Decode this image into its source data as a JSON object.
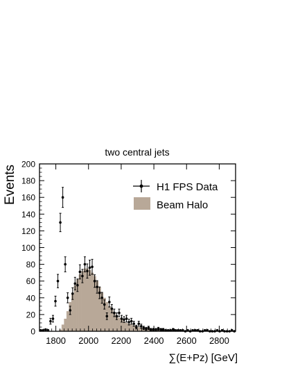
{
  "chart_data": {
    "type": "bar",
    "title": "two central jets",
    "xlabel": "∑(E+Pz) [GeV]",
    "ylabel": "Events",
    "xlim": [
      1700,
      2900
    ],
    "ylim": [
      0,
      200
    ],
    "x_ticks": [
      "1800",
      "2000",
      "2200",
      "2400",
      "2600",
      "2800"
    ],
    "y_ticks": [
      "0",
      "20",
      "40",
      "60",
      "80",
      "100",
      "120",
      "140",
      "160",
      "180",
      "200"
    ],
    "legend_position": "top-right",
    "colors": {
      "halo": "#b8a898",
      "data": "#000000",
      "frame": "#000000"
    },
    "series": [
      {
        "name": "H1 FPS Data",
        "kind": "points-with-errors",
        "x": [
          1700,
          1715,
          1730,
          1745,
          1760,
          1775,
          1790,
          1805,
          1820,
          1835,
          1850,
          1865,
          1880,
          1895,
          1910,
          1925,
          1940,
          1955,
          1970,
          1985,
          2000,
          2015,
          2030,
          2045,
          2060,
          2075,
          2090,
          2105,
          2120,
          2135,
          2150,
          2165,
          2180,
          2195,
          2210,
          2225,
          2240,
          2255,
          2270,
          2285,
          2300,
          2315,
          2330,
          2345,
          2360,
          2375,
          2390,
          2405,
          2420,
          2435,
          2450,
          2465,
          2480,
          2495,
          2510,
          2525,
          2540,
          2555,
          2570,
          2585,
          2600,
          2615,
          2630,
          2645,
          2660,
          2675,
          2690,
          2705,
          2720,
          2735,
          2750,
          2765,
          2780,
          2795,
          2810,
          2825,
          2840,
          2855,
          2870,
          2885
        ],
        "y": [
          1,
          1,
          2,
          1,
          12,
          15,
          36,
          60,
          130,
          160,
          80,
          40,
          25,
          45,
          57,
          55,
          71,
          66,
          80,
          72,
          76,
          77,
          60,
          53,
          46,
          40,
          32,
          18,
          35,
          27,
          22,
          18,
          22,
          15,
          14,
          15,
          11,
          12,
          9,
          5,
          9,
          6,
          4,
          3,
          4,
          2,
          2,
          2,
          3,
          2,
          2,
          1,
          1,
          1,
          2,
          1,
          1,
          1,
          1,
          0,
          1,
          0,
          1,
          1,
          1,
          0,
          0,
          1,
          1,
          0,
          0,
          0,
          1,
          0,
          1,
          0,
          0,
          0,
          1,
          0
        ],
        "err": [
          1,
          1,
          1,
          1,
          3.5,
          4,
          6,
          8,
          11,
          12,
          9,
          6,
          5,
          7,
          7.5,
          7.5,
          8.5,
          8,
          9,
          8.5,
          9,
          9,
          7.5,
          7.5,
          7,
          6.5,
          5.5,
          4,
          6,
          5,
          4.5,
          4,
          4.5,
          4,
          3.5,
          4,
          3.5,
          3.5,
          3,
          2.2,
          3,
          2.5,
          2,
          1.7,
          2,
          1.4,
          1.4,
          1.4,
          1.7,
          1.4,
          1.4,
          1,
          1,
          1,
          1.4,
          1,
          1,
          1,
          1,
          0,
          1,
          0,
          1,
          1,
          1,
          0,
          0,
          1,
          1,
          0,
          0,
          0,
          1,
          0,
          1,
          0,
          0,
          0,
          1,
          0
        ]
      },
      {
        "name": "Beam Halo",
        "kind": "filled-histogram",
        "bin_width": 15,
        "x": [
          1700,
          1715,
          1730,
          1745,
          1760,
          1775,
          1790,
          1805,
          1820,
          1835,
          1850,
          1865,
          1880,
          1895,
          1910,
          1925,
          1940,
          1955,
          1970,
          1985,
          2000,
          2015,
          2030,
          2045,
          2060,
          2075,
          2090,
          2105,
          2120,
          2135,
          2150,
          2165,
          2180,
          2195,
          2210,
          2225,
          2240,
          2255,
          2270,
          2285,
          2300,
          2315,
          2330,
          2345,
          2360,
          2375,
          2390,
          2405,
          2420,
          2435,
          2450,
          2465,
          2480,
          2495,
          2510,
          2525,
          2540,
          2555,
          2570,
          2585,
          2600,
          2615,
          2630,
          2645,
          2660,
          2675,
          2690,
          2705,
          2720,
          2735,
          2750,
          2765,
          2780,
          2795,
          2810,
          2825,
          2840,
          2855,
          2870,
          2885
        ],
        "values": [
          0,
          0,
          0,
          0,
          0,
          0,
          0,
          0,
          2,
          8,
          15,
          24,
          35,
          45,
          55,
          62,
          68,
          72,
          75,
          75,
          73,
          70,
          66,
          60,
          53,
          46,
          40,
          35,
          30,
          26,
          22,
          19,
          16,
          14,
          12,
          10,
          9,
          8,
          7,
          6,
          5,
          4.5,
          4,
          3.5,
          3,
          2.5,
          2.2,
          2,
          1.8,
          1.6,
          1.5,
          1.3,
          1.2,
          1.1,
          1,
          0.9,
          0.8,
          0.8,
          0.7,
          0.7,
          0.6,
          0.6,
          0.5,
          0.5,
          0.5,
          0.4,
          0.4,
          0.4,
          0.3,
          0.3,
          0.3,
          0.3,
          0.3,
          0.2,
          0.2,
          0.2,
          0.2,
          0.2,
          0.2,
          0.2
        ]
      }
    ]
  }
}
